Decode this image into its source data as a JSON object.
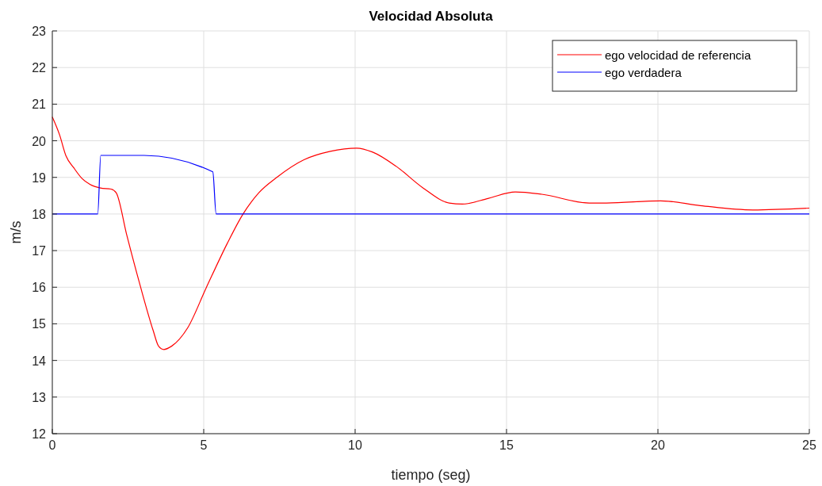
{
  "chart_data": {
    "type": "line",
    "title": "Velocidad Absoluta",
    "xlabel": "tiempo (seg)",
    "ylabel": "m/s",
    "xlim": [
      0,
      25
    ],
    "xticks": [
      0,
      5,
      10,
      15,
      20,
      25
    ],
    "ylim": [
      12,
      23
    ],
    "yticks": [
      12,
      13,
      14,
      15,
      16,
      17,
      18,
      19,
      20,
      21,
      22,
      23
    ],
    "grid": true,
    "legend": "top right",
    "line_style": "solid",
    "series": [
      {
        "name": "ego velocidad de referencia",
        "color": "#ff0000",
        "x": [
          0,
          0.24,
          0.45,
          0.71,
          0.98,
          1.24,
          1.59,
          1.94,
          2.11,
          2.46,
          2.9,
          3.33,
          3.51,
          3.68,
          3.94,
          4.47,
          5.08,
          5.78,
          6.3,
          6.82,
          7.43,
          8.31,
          9.18,
          10.05,
          10.58,
          11.36,
          12.23,
          13.11,
          13.54,
          14.41,
          15.29,
          16.16,
          17.73,
          18.3,
          20.09,
          21.4,
          23.14,
          25
        ],
        "values": [
          20.65,
          20.16,
          19.59,
          19.26,
          18.97,
          18.81,
          18.71,
          18.68,
          18.58,
          17.42,
          16.05,
          14.82,
          14.39,
          14.3,
          14.39,
          14.89,
          15.98,
          17.2,
          18.0,
          18.58,
          19.01,
          19.48,
          19.71,
          19.8,
          19.69,
          19.3,
          18.72,
          18.3,
          18.27,
          18.43,
          18.6,
          18.54,
          18.3,
          18.3,
          18.36,
          18.23,
          18.11,
          18.16
        ]
      },
      {
        "name": "ego verdadera",
        "color": "#0000ff",
        "x": [
          0,
          1.5,
          1.6,
          3.03,
          5.3,
          5.41,
          25
        ],
        "values": [
          18,
          18,
          19.6,
          19.6,
          19.15,
          18,
          18
        ]
      }
    ]
  }
}
